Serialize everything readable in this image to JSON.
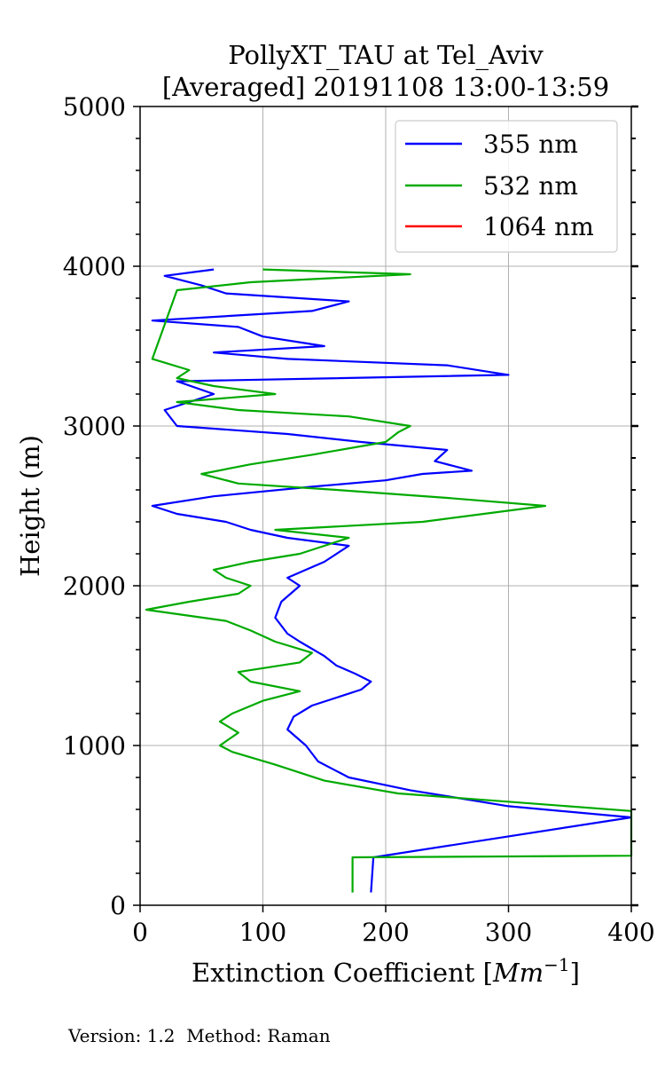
{
  "chart_data": {
    "type": "line",
    "title_line1": "PollyXT_TAU at Tel_Aviv",
    "title_line2": "[Averaged] 20191108 13:00-13:59",
    "xlabel": "Extinction Coefficient [",
    "xlabel_unit": "Mm",
    "xlabel_exp": "−1",
    "xlabel_close": "]",
    "ylabel": "Height (m)",
    "xlim": [
      0,
      400
    ],
    "ylim": [
      0,
      5000
    ],
    "x_ticks": [
      "0",
      "100",
      "200",
      "300",
      "400"
    ],
    "y_ticks": [
      "0",
      "1000",
      "2000",
      "3000",
      "4000",
      "5000"
    ],
    "grid": true,
    "legend_position": "top-right",
    "series": [
      {
        "name": "355 nm",
        "color": "#0000ff",
        "points": [
          [
            188,
            80
          ],
          [
            190,
            300
          ],
          [
            400,
            550
          ],
          [
            300,
            620
          ],
          [
            220,
            720
          ],
          [
            170,
            800
          ],
          [
            145,
            900
          ],
          [
            135,
            1000
          ],
          [
            120,
            1100
          ],
          [
            125,
            1180
          ],
          [
            140,
            1250
          ],
          [
            180,
            1350
          ],
          [
            188,
            1400
          ],
          [
            175,
            1450
          ],
          [
            160,
            1500
          ],
          [
            150,
            1560
          ],
          [
            130,
            1650
          ],
          [
            120,
            1700
          ],
          [
            110,
            1800
          ],
          [
            115,
            1900
          ],
          [
            130,
            2000
          ],
          [
            120,
            2050
          ],
          [
            150,
            2150
          ],
          [
            170,
            2250
          ],
          [
            120,
            2300
          ],
          [
            90,
            2350
          ],
          [
            70,
            2400
          ],
          [
            30,
            2450
          ],
          [
            10,
            2500
          ],
          [
            60,
            2560
          ],
          [
            140,
            2620
          ],
          [
            200,
            2660
          ],
          [
            230,
            2700
          ],
          [
            270,
            2720
          ],
          [
            240,
            2780
          ],
          [
            250,
            2850
          ],
          [
            180,
            2900
          ],
          [
            120,
            2950
          ],
          [
            30,
            3000
          ],
          [
            20,
            3100
          ],
          [
            60,
            3200
          ],
          [
            30,
            3280
          ],
          [
            300,
            3320
          ],
          [
            250,
            3380
          ],
          [
            120,
            3420
          ],
          [
            60,
            3460
          ],
          [
            150,
            3500
          ],
          [
            100,
            3560
          ],
          [
            80,
            3620
          ],
          [
            10,
            3660
          ],
          [
            140,
            3720
          ],
          [
            170,
            3780
          ],
          [
            70,
            3830
          ],
          [
            50,
            3880
          ],
          [
            20,
            3940
          ],
          [
            60,
            3980
          ]
        ]
      },
      {
        "name": "532 nm",
        "color": "#00aa00",
        "points": [
          [
            173,
            80
          ],
          [
            173,
            300
          ],
          [
            400,
            310
          ],
          [
            400,
            590
          ],
          [
            210,
            700
          ],
          [
            150,
            780
          ],
          [
            110,
            880
          ],
          [
            75,
            960
          ],
          [
            65,
            1000
          ],
          [
            80,
            1080
          ],
          [
            65,
            1150
          ],
          [
            75,
            1200
          ],
          [
            100,
            1280
          ],
          [
            130,
            1340
          ],
          [
            90,
            1400
          ],
          [
            80,
            1460
          ],
          [
            130,
            1520
          ],
          [
            140,
            1580
          ],
          [
            110,
            1650
          ],
          [
            90,
            1720
          ],
          [
            70,
            1780
          ],
          [
            5,
            1850
          ],
          [
            40,
            1900
          ],
          [
            80,
            1950
          ],
          [
            90,
            2000
          ],
          [
            70,
            2050
          ],
          [
            60,
            2100
          ],
          [
            90,
            2150
          ],
          [
            130,
            2200
          ],
          [
            150,
            2250
          ],
          [
            170,
            2300
          ],
          [
            110,
            2350
          ],
          [
            230,
            2400
          ],
          [
            330,
            2500
          ],
          [
            250,
            2550
          ],
          [
            160,
            2600
          ],
          [
            80,
            2640
          ],
          [
            50,
            2700
          ],
          [
            90,
            2760
          ],
          [
            140,
            2820
          ],
          [
            200,
            2900
          ],
          [
            210,
            2960
          ],
          [
            220,
            3000
          ],
          [
            170,
            3060
          ],
          [
            80,
            3100
          ],
          [
            30,
            3150
          ],
          [
            110,
            3200
          ],
          [
            60,
            3250
          ],
          [
            30,
            3300
          ],
          [
            40,
            3350
          ],
          [
            10,
            3420
          ],
          [
            30,
            3850
          ],
          [
            90,
            3900
          ],
          [
            220,
            3950
          ],
          [
            100,
            3980
          ]
        ]
      },
      {
        "name": "1064 nm",
        "color": "#ff0000",
        "points": []
      }
    ]
  },
  "footer": "Version: 1.2  Method: Raman"
}
